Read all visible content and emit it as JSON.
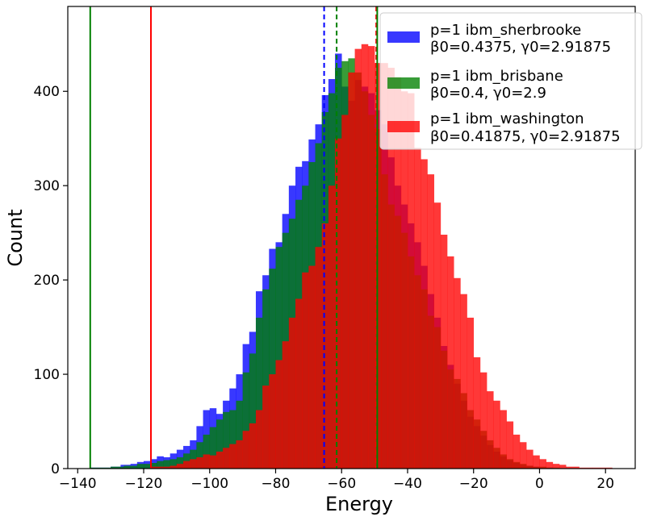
{
  "chart_data": {
    "type": "histogram",
    "xlabel": "Energy",
    "ylabel": "Count",
    "xlim": [
      -143,
      29
    ],
    "ylim": [
      0,
      490
    ],
    "xticks": [
      -140,
      -120,
      -100,
      -80,
      -60,
      -40,
      -20,
      0,
      20
    ],
    "yticks": [
      0,
      100,
      200,
      300,
      400
    ],
    "legend_position": "top-right",
    "series": [
      {
        "name": "p=1 ibm_sherbrooke",
        "params": "β0=0.4375, γ0=2.91875",
        "color": "#0000ff",
        "opacity": 0.78,
        "bins": [
          [
            -136,
            -130,
            1
          ],
          [
            -130,
            -127,
            2
          ],
          [
            -127,
            -124,
            4
          ],
          [
            -124,
            -122,
            5
          ],
          [
            -122,
            -120,
            7
          ],
          [
            -120,
            -118,
            8
          ],
          [
            -118,
            -116,
            10
          ],
          [
            -116,
            -114,
            13
          ],
          [
            -114,
            -112,
            12
          ],
          [
            -112,
            -110,
            16
          ],
          [
            -110,
            -108,
            20
          ],
          [
            -108,
            -106,
            24
          ],
          [
            -106,
            -104,
            30
          ],
          [
            -104,
            -102,
            45
          ],
          [
            -102,
            -100,
            62
          ],
          [
            -100,
            -98,
            64
          ],
          [
            -98,
            -96,
            58
          ],
          [
            -96,
            -94,
            72
          ],
          [
            -94,
            -92,
            85
          ],
          [
            -92,
            -90,
            100
          ],
          [
            -90,
            -88,
            132
          ],
          [
            -88,
            -86,
            145
          ],
          [
            -86,
            -84,
            188
          ],
          [
            -84,
            -82,
            205
          ],
          [
            -82,
            -80,
            233
          ],
          [
            -80,
            -78,
            240
          ],
          [
            -78,
            -76,
            270
          ],
          [
            -76,
            -74,
            300
          ],
          [
            -74,
            -72,
            320
          ],
          [
            -72,
            -70,
            326
          ],
          [
            -70,
            -68,
            349
          ],
          [
            -68,
            -66,
            365
          ],
          [
            -66,
            -64,
            396
          ],
          [
            -64,
            -62,
            413
          ],
          [
            -62,
            -60,
            440
          ],
          [
            -60,
            -58,
            405
          ],
          [
            -58,
            -56,
            390
          ],
          [
            -56,
            -54,
            412
          ],
          [
            -54,
            -52,
            405
          ],
          [
            -52,
            -50,
            398
          ],
          [
            -50,
            -48,
            380
          ],
          [
            -48,
            -46,
            365
          ],
          [
            -46,
            -44,
            330
          ],
          [
            -44,
            -42,
            300
          ],
          [
            -42,
            -40,
            280
          ],
          [
            -40,
            -38,
            260
          ],
          [
            -38,
            -36,
            240
          ],
          [
            -36,
            -34,
            215
          ],
          [
            -34,
            -32,
            185
          ],
          [
            -32,
            -30,
            160
          ],
          [
            -30,
            -28,
            130
          ],
          [
            -28,
            -26,
            110
          ],
          [
            -26,
            -24,
            90
          ],
          [
            -24,
            -22,
            72
          ],
          [
            -22,
            -20,
            55
          ],
          [
            -20,
            -18,
            45
          ],
          [
            -18,
            -16,
            35
          ],
          [
            -16,
            -14,
            25
          ],
          [
            -14,
            -12,
            18
          ],
          [
            -12,
            -10,
            13
          ],
          [
            -10,
            -8,
            9
          ],
          [
            -8,
            -6,
            6
          ],
          [
            -6,
            -4,
            4
          ],
          [
            -4,
            -2,
            3
          ],
          [
            -2,
            0,
            2
          ],
          [
            0,
            4,
            1
          ]
        ]
      },
      {
        "name": "p=1 ibm_brisbane",
        "params": "β0=0.4, γ0=2.9",
        "color": "#008000",
        "opacity": 0.78,
        "bins": [
          [
            -136,
            -130,
            1
          ],
          [
            -130,
            -126,
            2
          ],
          [
            -126,
            -122,
            3
          ],
          [
            -122,
            -118,
            5
          ],
          [
            -118,
            -116,
            6
          ],
          [
            -116,
            -114,
            8
          ],
          [
            -114,
            -112,
            9
          ],
          [
            -112,
            -110,
            10
          ],
          [
            -110,
            -108,
            12
          ],
          [
            -108,
            -106,
            16
          ],
          [
            -106,
            -104,
            20
          ],
          [
            -104,
            -102,
            28
          ],
          [
            -102,
            -100,
            36
          ],
          [
            -100,
            -98,
            44
          ],
          [
            -98,
            -96,
            52
          ],
          [
            -96,
            -94,
            60
          ],
          [
            -94,
            -92,
            62
          ],
          [
            -92,
            -90,
            72
          ],
          [
            -90,
            -88,
            102
          ],
          [
            -88,
            -86,
            122
          ],
          [
            -86,
            -84,
            160
          ],
          [
            -84,
            -82,
            190
          ],
          [
            -82,
            -80,
            212
          ],
          [
            -80,
            -78,
            235
          ],
          [
            -78,
            -76,
            250
          ],
          [
            -76,
            -74,
            265
          ],
          [
            -74,
            -72,
            285
          ],
          [
            -72,
            -70,
            300
          ],
          [
            -70,
            -68,
            325
          ],
          [
            -68,
            -66,
            345
          ],
          [
            -66,
            -64,
            378
          ],
          [
            -64,
            -62,
            398
          ],
          [
            -62,
            -60,
            425
          ],
          [
            -60,
            -58,
            432
          ],
          [
            -58,
            -56,
            435
          ],
          [
            -56,
            -54,
            420
          ],
          [
            -54,
            -52,
            400
          ],
          [
            -52,
            -50,
            375
          ],
          [
            -50,
            -48,
            360
          ],
          [
            -48,
            -46,
            312
          ],
          [
            -46,
            -44,
            280
          ],
          [
            -44,
            -42,
            268
          ],
          [
            -42,
            -40,
            250
          ],
          [
            -40,
            -38,
            225
          ],
          [
            -38,
            -36,
            205
          ],
          [
            -36,
            -34,
            190
          ],
          [
            -34,
            -32,
            162
          ],
          [
            -32,
            -30,
            150
          ],
          [
            -30,
            -28,
            125
          ],
          [
            -28,
            -26,
            105
          ],
          [
            -26,
            -24,
            95
          ],
          [
            -24,
            -22,
            80
          ],
          [
            -22,
            -20,
            62
          ],
          [
            -20,
            -18,
            52
          ],
          [
            -18,
            -16,
            40
          ],
          [
            -16,
            -14,
            30
          ],
          [
            -14,
            -12,
            22
          ],
          [
            -12,
            -10,
            15
          ],
          [
            -10,
            -8,
            10
          ],
          [
            -8,
            -6,
            7
          ],
          [
            -6,
            -4,
            5
          ],
          [
            -4,
            -2,
            3
          ],
          [
            -2,
            2,
            2
          ],
          [
            2,
            6,
            1
          ]
        ]
      },
      {
        "name": "p=1 ibm_washington",
        "params": "β0=0.41875, γ0=2.91875",
        "color": "#ff0000",
        "opacity": 0.78,
        "bins": [
          [
            -118,
            -112,
            2
          ],
          [
            -112,
            -110,
            3
          ],
          [
            -110,
            -108,
            5
          ],
          [
            -108,
            -106,
            8
          ],
          [
            -106,
            -104,
            10
          ],
          [
            -104,
            -102,
            12
          ],
          [
            -102,
            -100,
            15
          ],
          [
            -100,
            -98,
            14
          ],
          [
            -98,
            -96,
            18
          ],
          [
            -96,
            -94,
            22
          ],
          [
            -94,
            -92,
            26
          ],
          [
            -92,
            -90,
            30
          ],
          [
            -90,
            -88,
            40
          ],
          [
            -88,
            -86,
            48
          ],
          [
            -86,
            -84,
            62
          ],
          [
            -84,
            -82,
            88
          ],
          [
            -82,
            -80,
            100
          ],
          [
            -80,
            -78,
            115
          ],
          [
            -78,
            -76,
            135
          ],
          [
            -76,
            -74,
            160
          ],
          [
            -74,
            -72,
            180
          ],
          [
            -72,
            -70,
            208
          ],
          [
            -70,
            -68,
            215
          ],
          [
            -68,
            -66,
            235
          ],
          [
            -66,
            -64,
            260
          ],
          [
            -64,
            -62,
            300
          ],
          [
            -62,
            -60,
            350
          ],
          [
            -60,
            -58,
            375
          ],
          [
            -58,
            -56,
            420
          ],
          [
            -56,
            -54,
            445
          ],
          [
            -54,
            -52,
            450
          ],
          [
            -52,
            -50,
            448
          ],
          [
            -50,
            -48,
            430
          ],
          [
            -48,
            -46,
            430
          ],
          [
            -46,
            -44,
            425
          ],
          [
            -44,
            -42,
            415
          ],
          [
            -42,
            -40,
            400
          ],
          [
            -40,
            -38,
            398
          ],
          [
            -38,
            -36,
            340
          ],
          [
            -36,
            -34,
            328
          ],
          [
            -34,
            -32,
            312
          ],
          [
            -32,
            -30,
            282
          ],
          [
            -30,
            -28,
            248
          ],
          [
            -28,
            -26,
            225
          ],
          [
            -26,
            -24,
            202
          ],
          [
            -24,
            -22,
            185
          ],
          [
            -22,
            -20,
            160
          ],
          [
            -20,
            -18,
            118
          ],
          [
            -18,
            -16,
            102
          ],
          [
            -16,
            -14,
            82
          ],
          [
            -14,
            -12,
            72
          ],
          [
            -12,
            -10,
            62
          ],
          [
            -10,
            -8,
            50
          ],
          [
            -8,
            -6,
            36
          ],
          [
            -6,
            -4,
            28
          ],
          [
            -4,
            -2,
            20
          ],
          [
            -2,
            0,
            14
          ],
          [
            0,
            2,
            10
          ],
          [
            2,
            4,
            7
          ],
          [
            4,
            6,
            5
          ],
          [
            6,
            8,
            4
          ],
          [
            8,
            12,
            2
          ],
          [
            12,
            16,
            1
          ],
          [
            16,
            22,
            1
          ]
        ]
      }
    ],
    "vertical_lines": [
      {
        "name": "sherbrooke-mean",
        "x": -65.3,
        "color": "#0000ff",
        "style": "dashed"
      },
      {
        "name": "brisbane-mean",
        "x": -61.5,
        "color": "#008000",
        "style": "dashed"
      },
      {
        "name": "washington-mean",
        "x": -49.5,
        "color": "#ff0000",
        "style": "dashed"
      },
      {
        "name": "brisbane-min",
        "x": -136.2,
        "color": "#008000",
        "style": "solid"
      },
      {
        "name": "washington-min",
        "x": -117.8,
        "color": "#ff0000",
        "style": "solid"
      },
      {
        "name": "brisbane-marker",
        "x": -49.2,
        "color": "#008000",
        "style": "solid"
      }
    ]
  }
}
